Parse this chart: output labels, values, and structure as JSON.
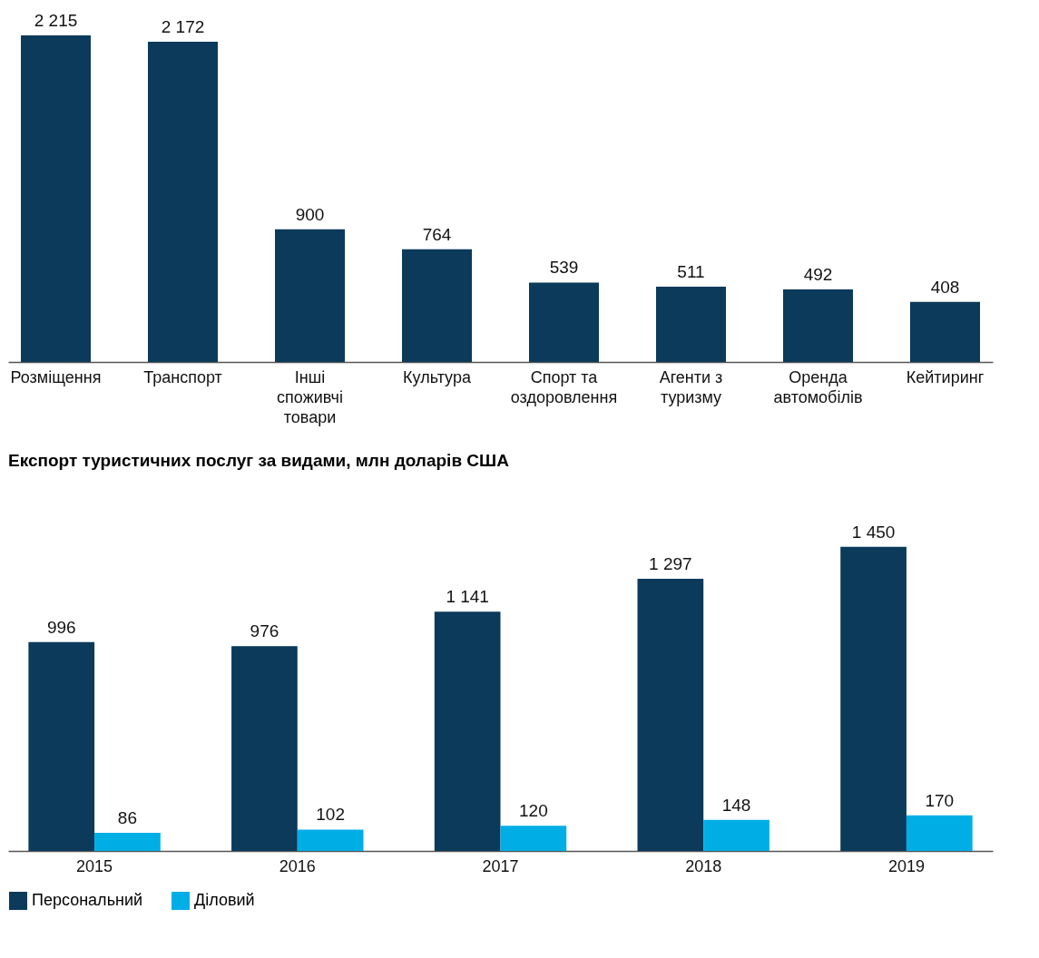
{
  "chart_data": [
    {
      "type": "bar",
      "categories": [
        "Розміщення",
        "Транспорт",
        "Інші\nспоживчі\nтовари",
        "Культура",
        "Спорт та\nоздоровлення",
        "Агенти з\nтуризму",
        "Оренда\nавтомобілів",
        "Кейтиринг"
      ],
      "series": [
        {
          "color": "#0b3a5b",
          "values": [
            2215,
            2172,
            900,
            764,
            539,
            511,
            492,
            408
          ],
          "value_labels": [
            "2 215",
            "2 172",
            "900",
            "764",
            "539",
            "511",
            "492",
            "408"
          ]
        }
      ],
      "tick_labels": "x",
      "legend": false
    },
    {
      "type": "bar",
      "title": "Експорт туристичних послуг за видами, млн доларів США",
      "categories": [
        "2015",
        "2016",
        "2017",
        "2018",
        "2019"
      ],
      "series": [
        {
          "name": "Персональний",
          "color": "#0b3a5b",
          "values": [
            996,
            976,
            1141,
            1297,
            1450
          ],
          "value_labels": [
            "996",
            "976",
            "1 141",
            "1 297",
            "1 450"
          ]
        },
        {
          "name": "Діловий",
          "color": "#00aee6",
          "values": [
            86,
            102,
            120,
            148,
            170
          ],
          "value_labels": [
            "86",
            "102",
            "120",
            "148",
            "170"
          ]
        }
      ],
      "tick_labels": "x",
      "legend": "bottom"
    }
  ]
}
